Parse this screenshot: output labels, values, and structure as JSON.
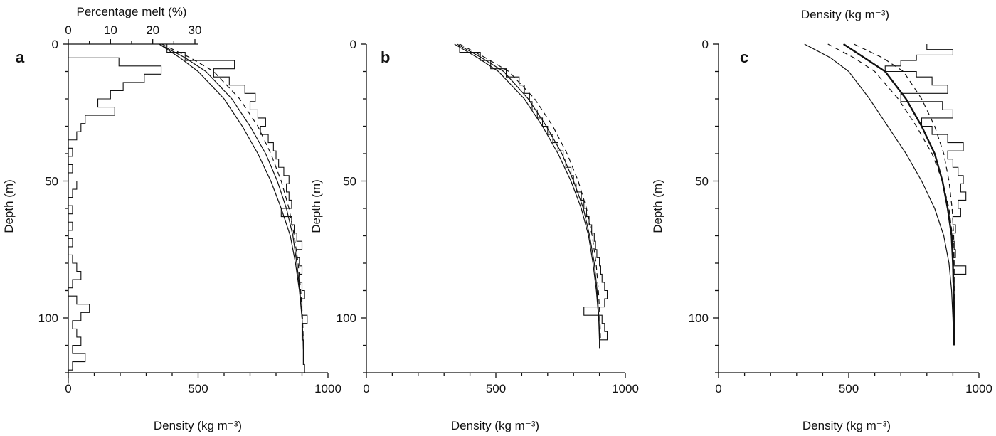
{
  "chart_data": [
    {
      "type": "line",
      "panel": "a",
      "xlabel": "Density (kg m⁻³)",
      "ylabel": "Depth (m)",
      "xlim": [
        0,
        1000
      ],
      "ylim": [
        120,
        0
      ],
      "xticks": [
        0,
        500,
        1000
      ],
      "yticks": [
        0,
        50,
        100
      ],
      "secondary_xaxis": {
        "label": "Percentage melt (%)",
        "ticks": [
          0,
          10,
          20,
          30
        ],
        "range": [
          0,
          30
        ]
      },
      "series": [
        {
          "style": "step-measured",
          "axis": "density",
          "depth": [
            0,
            3,
            6,
            9,
            12,
            15,
            18,
            21,
            24,
            27,
            30,
            33,
            36,
            39,
            42,
            45,
            48,
            51,
            54,
            57,
            60,
            63,
            66,
            69,
            72,
            75,
            78,
            81,
            84,
            87,
            90,
            93,
            96,
            99,
            102,
            105,
            108,
            111,
            114,
            117
          ],
          "values": [
            380,
            450,
            640,
            560,
            620,
            680,
            720,
            700,
            730,
            760,
            740,
            770,
            790,
            800,
            810,
            830,
            850,
            840,
            850,
            860,
            820,
            860,
            870,
            880,
            900,
            880,
            890,
            900,
            890,
            900,
            910,
            900,
            900,
            920,
            900,
            900,
            905,
            905,
            905,
            910
          ]
        },
        {
          "style": "fit-solid",
          "axis": "density",
          "depth": [
            0,
            5,
            10,
            20,
            30,
            40,
            50,
            60,
            70,
            80,
            90,
            100,
            110,
            117
          ],
          "values": [
            350,
            430,
            500,
            600,
            670,
            730,
            780,
            820,
            855,
            875,
            890,
            900,
            905,
            908
          ]
        },
        {
          "style": "fit-solid-2",
          "axis": "density",
          "depth": [
            0,
            5,
            10,
            20,
            30,
            40,
            50,
            60,
            70,
            80,
            90,
            100,
            110,
            117
          ],
          "values": [
            350,
            450,
            530,
            630,
            700,
            760,
            805,
            840,
            865,
            880,
            892,
            900,
            905,
            908
          ]
        },
        {
          "style": "fit-dashed",
          "axis": "density",
          "depth": [
            0,
            5,
            10,
            20,
            30,
            40,
            50,
            60,
            70,
            80,
            90,
            100,
            110,
            117
          ],
          "values": [
            360,
            470,
            560,
            660,
            730,
            780,
            820,
            850,
            870,
            885,
            895,
            902,
            906,
            908
          ]
        },
        {
          "style": "step-melt",
          "axis": "melt",
          "depth": [
            0,
            5,
            8,
            11,
            14,
            17,
            20,
            23,
            26,
            29,
            32,
            35,
            38,
            41,
            44,
            47,
            50,
            53,
            56,
            59,
            62,
            65,
            68,
            71,
            74,
            77,
            80,
            83,
            86,
            89,
            92,
            95,
            98,
            101,
            104,
            107,
            110,
            113,
            116,
            119
          ],
          "values": [
            0,
            12,
            22,
            18,
            13,
            10,
            7,
            11,
            4,
            3,
            2,
            0,
            1,
            0,
            1,
            0,
            2,
            1,
            0,
            1,
            0,
            1,
            0,
            1,
            0,
            1,
            2,
            3,
            1,
            0,
            2,
            5,
            3,
            1,
            2,
            3,
            1,
            4,
            1,
            0
          ]
        }
      ]
    },
    {
      "type": "line",
      "panel": "b",
      "xlabel": "Density (kg m⁻³)",
      "ylabel": "Depth (m)",
      "xlim": [
        0,
        1000
      ],
      "ylim": [
        120,
        0
      ],
      "xticks": [
        0,
        500,
        1000
      ],
      "yticks": [
        0,
        50,
        100
      ],
      "series": [
        {
          "style": "step-measured",
          "depth": [
            0,
            3,
            6,
            9,
            12,
            15,
            18,
            21,
            24,
            27,
            30,
            33,
            36,
            39,
            42,
            45,
            48,
            51,
            54,
            57,
            60,
            63,
            66,
            69,
            72,
            75,
            78,
            81,
            84,
            87,
            90,
            93,
            96,
            99,
            102,
            105,
            108
          ],
          "values": [
            360,
            440,
            480,
            540,
            590,
            610,
            630,
            640,
            660,
            680,
            700,
            720,
            740,
            760,
            770,
            790,
            800,
            810,
            830,
            840,
            850,
            860,
            870,
            880,
            885,
            890,
            900,
            905,
            910,
            920,
            930,
            920,
            840,
            910,
            920,
            930,
            900
          ]
        },
        {
          "style": "fit-solid",
          "depth": [
            0,
            5,
            10,
            20,
            30,
            40,
            50,
            60,
            70,
            80,
            90,
            100,
            108
          ],
          "values": [
            340,
            430,
            510,
            610,
            680,
            740,
            790,
            830,
            858,
            875,
            888,
            897,
            900
          ]
        },
        {
          "style": "fit-solid-2",
          "depth": [
            0,
            5,
            10,
            20,
            30,
            40,
            50,
            60,
            70,
            80,
            90,
            100,
            108
          ],
          "values": [
            350,
            445,
            530,
            625,
            695,
            755,
            800,
            838,
            862,
            880,
            891,
            898,
            901
          ]
        },
        {
          "style": "fit-dashed",
          "depth": [
            0,
            5,
            10,
            20,
            30,
            40,
            50,
            60,
            70,
            80,
            90,
            100,
            108
          ],
          "values": [
            360,
            460,
            550,
            650,
            720,
            775,
            818,
            850,
            872,
            887,
            896,
            902,
            904
          ]
        }
      ]
    },
    {
      "type": "line",
      "panel": "c",
      "title": "Density (kg m⁻³)",
      "xlabel": "Density (kg m⁻³)",
      "ylabel": "Depth (m)",
      "xlim": [
        0,
        1000
      ],
      "ylim": [
        120,
        0
      ],
      "xticks": [
        0,
        500,
        1000
      ],
      "yticks": [
        0,
        50,
        100
      ],
      "series": [
        {
          "style": "step-measured",
          "depth": [
            0,
            2,
            4,
            6,
            8,
            10,
            12,
            15,
            18,
            21,
            24,
            27,
            30,
            33,
            36,
            39,
            42,
            45,
            48,
            51,
            54,
            57,
            60,
            63,
            66,
            69,
            72,
            75,
            78,
            81,
            84,
            87
          ],
          "values": [
            800,
            900,
            760,
            700,
            640,
            760,
            820,
            880,
            700,
            860,
            900,
            780,
            820,
            880,
            940,
            880,
            900,
            920,
            940,
            930,
            950,
            920,
            930,
            900,
            910,
            900,
            905,
            910,
            900,
            950,
            900,
            905
          ]
        },
        {
          "style": "fit-solid",
          "depth": [
            0,
            5,
            10,
            20,
            30,
            40,
            50,
            60,
            70,
            80,
            90,
            100,
            110
          ],
          "values": [
            330,
            430,
            500,
            580,
            650,
            720,
            780,
            830,
            865,
            885,
            895,
            900,
            903
          ]
        },
        {
          "style": "fit-bold",
          "depth": [
            0,
            5,
            10,
            20,
            30,
            40,
            50,
            60,
            70,
            80,
            90,
            100,
            110
          ],
          "values": [
            480,
            560,
            640,
            720,
            780,
            830,
            860,
            880,
            895,
            900,
            903,
            905,
            905
          ]
        },
        {
          "style": "fit-dashed",
          "depth": [
            0,
            5,
            10,
            20,
            30,
            40,
            50,
            60,
            70,
            80,
            90,
            100,
            110
          ],
          "values": [
            420,
            520,
            600,
            690,
            760,
            820,
            860,
            885,
            898,
            903,
            905,
            905,
            905
          ]
        },
        {
          "style": "fit-dashed-2",
          "depth": [
            0,
            5,
            10,
            20,
            30,
            40,
            50,
            60,
            70,
            80,
            90,
            100,
            110
          ],
          "values": [
            520,
            630,
            710,
            780,
            830,
            865,
            885,
            897,
            903,
            905,
            905,
            905,
            905
          ]
        }
      ]
    }
  ]
}
